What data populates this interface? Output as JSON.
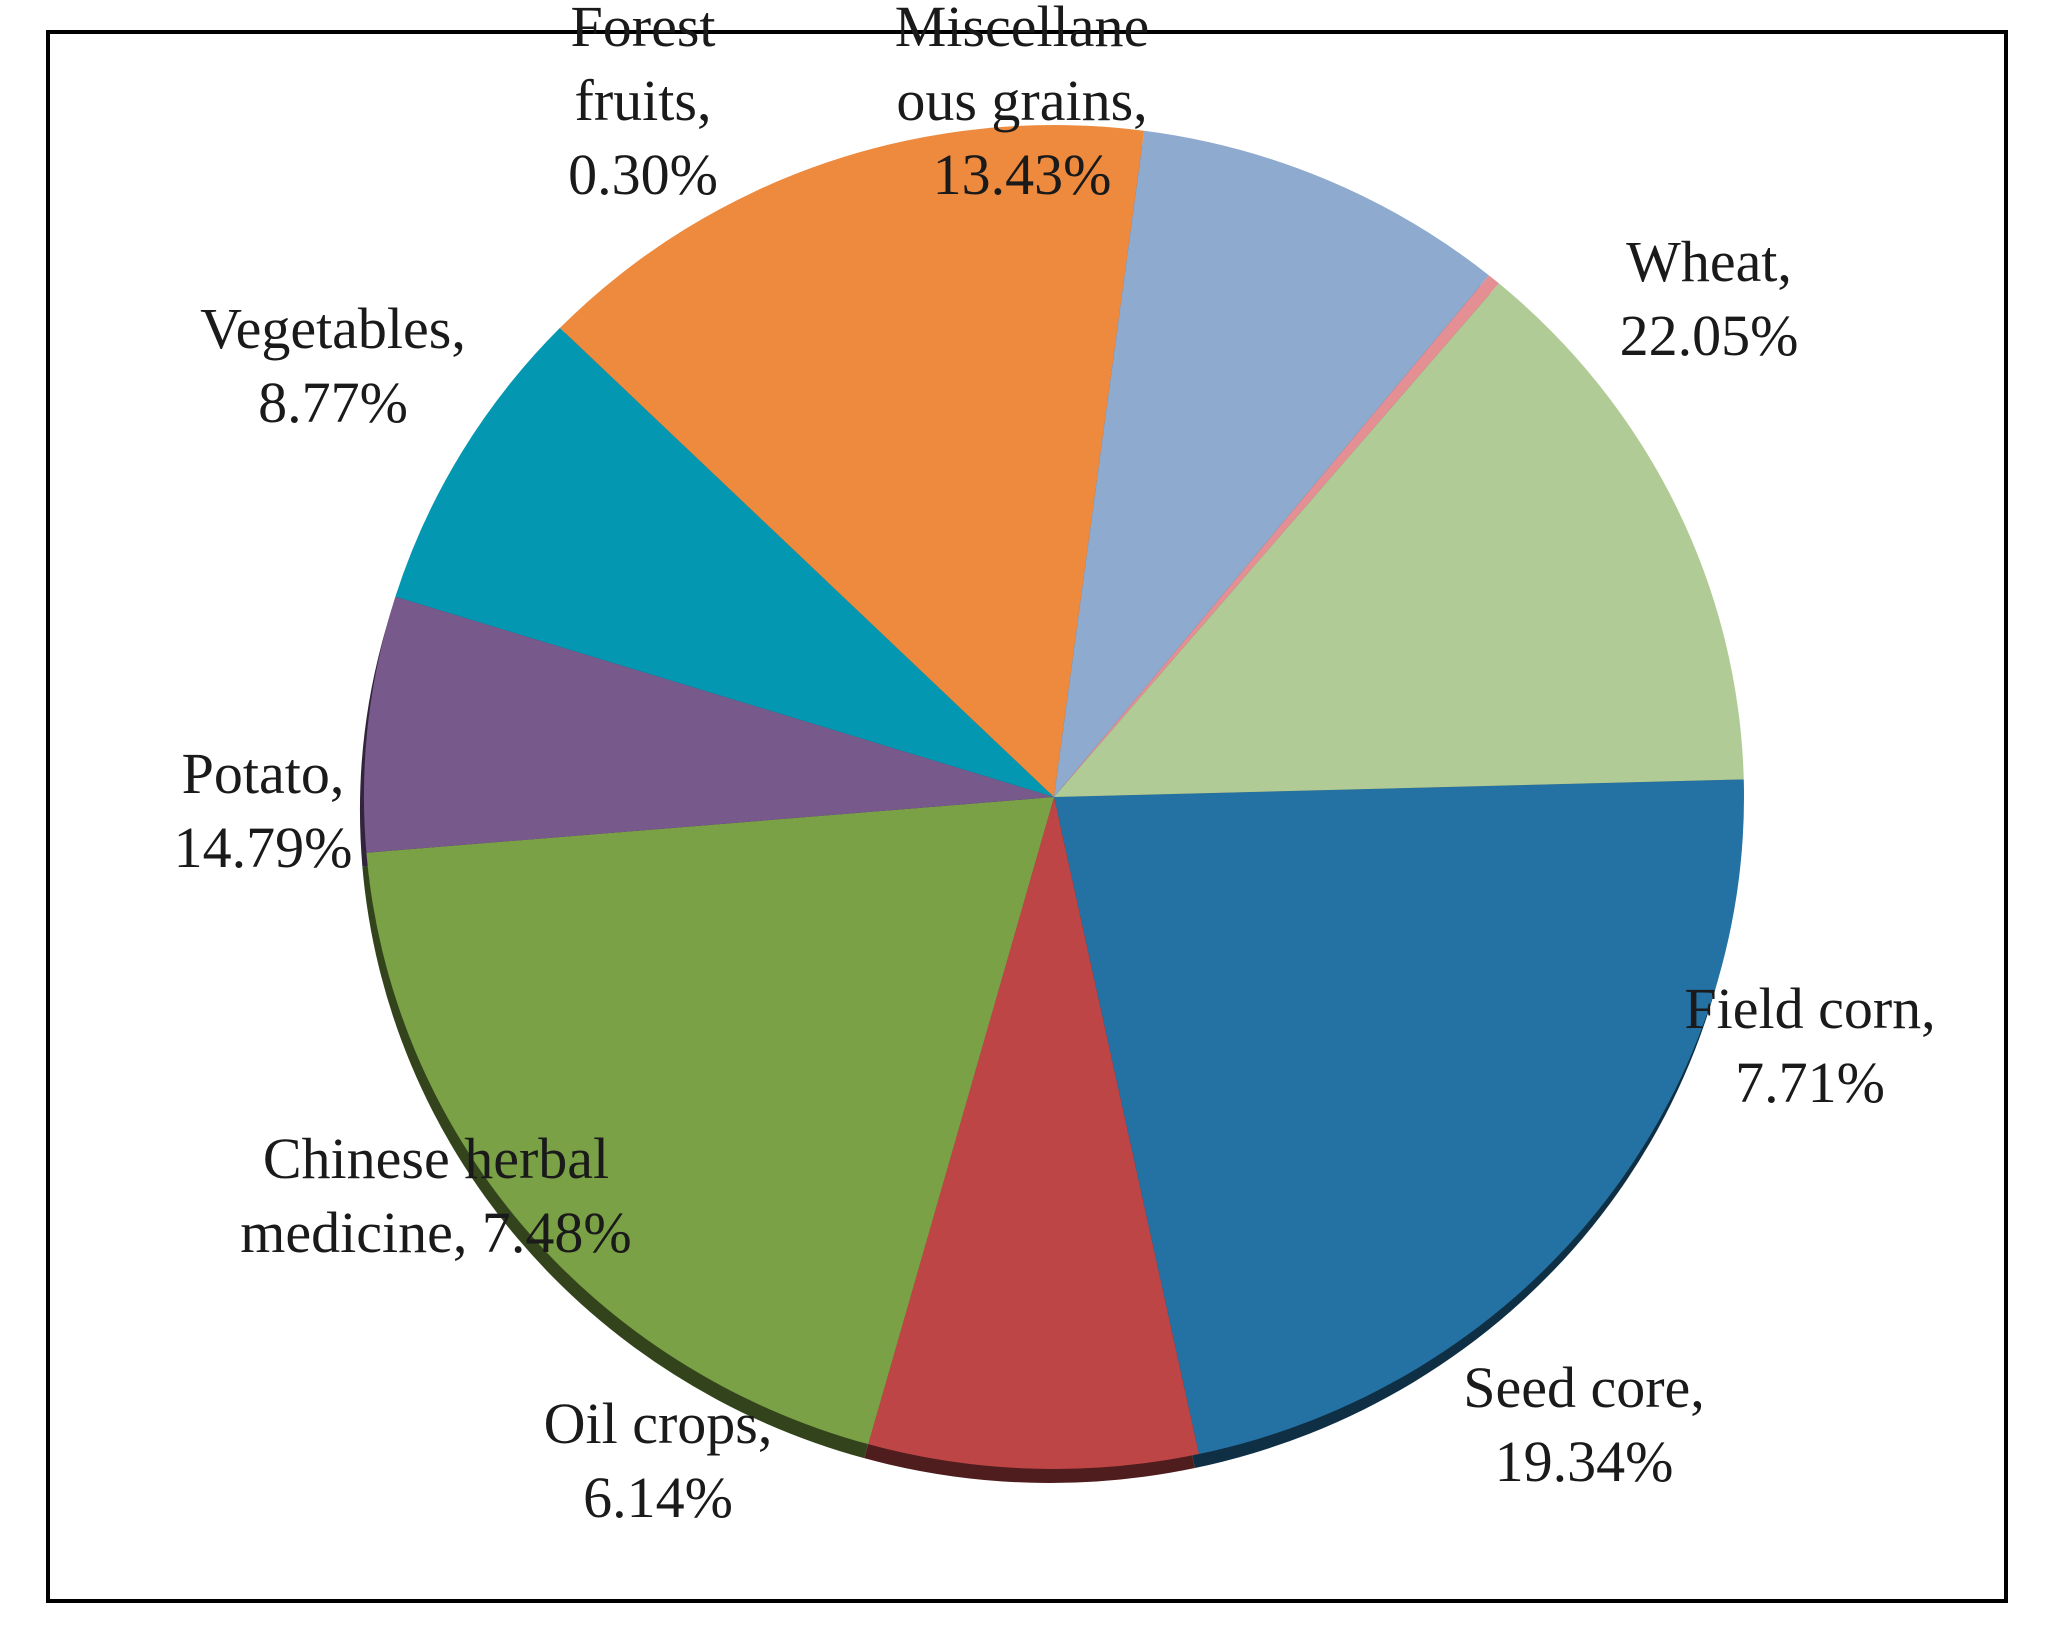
{
  "chart_data": {
    "type": "pie",
    "title": "",
    "unit": "%",
    "slices": [
      {
        "label_lines": [
          "Wheat,",
          "22.05%"
        ],
        "category": "Wheat",
        "value": 22.05,
        "color": "#2471a3"
      },
      {
        "label_lines": [
          "Field corn,",
          "7.71%"
        ],
        "category": "Field corn",
        "value": 7.71,
        "color": "#bd4545"
      },
      {
        "label_lines": [
          "Seed core,",
          "19.34%"
        ],
        "category": "Seed core",
        "value": 19.34,
        "color": "#7aa146"
      },
      {
        "label_lines": [
          "Oil crops,",
          "6.14%"
        ],
        "category": "Oil crops",
        "value": 6.14,
        "color": "#78598c"
      },
      {
        "label_lines": [
          "Chinese herbal",
          "medicine, 7.48%"
        ],
        "category": "Chinese herbal medicine",
        "value": 7.48,
        "color": "#0497b1"
      },
      {
        "label_lines": [
          "Potato,",
          "14.79%"
        ],
        "category": "Potato",
        "value": 14.79,
        "color": "#ee8a3e"
      },
      {
        "label_lines": [
          "Vegetables,",
          "8.77%"
        ],
        "category": "Vegetables",
        "value": 8.77,
        "color": "#8eaacf"
      },
      {
        "label_lines": [
          "Forest",
          "fruits,",
          "0.30%"
        ],
        "category": "Forest fruits",
        "value": 0.3,
        "color": "#e48f93"
      },
      {
        "label_lines": [
          "Miscellane",
          "ous grains,",
          "13.43%"
        ],
        "category": "Miscellaneous grains",
        "value": 13.43,
        "color": "#b1cb96"
      }
    ]
  }
}
